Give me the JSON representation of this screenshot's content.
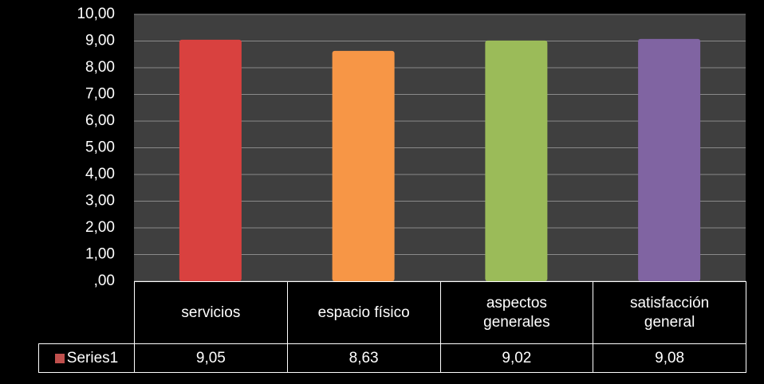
{
  "chart_data": {
    "type": "bar",
    "categories": [
      "servicios",
      "espacio físico",
      "aspectos generales",
      "satisfacción general"
    ],
    "series": [
      {
        "name": "Series1",
        "color": "#c0504d",
        "colors": [
          "#d9413f",
          "#f79646",
          "#9bbb59",
          "#8064a2"
        ],
        "values": [
          9.05,
          8.63,
          9.02,
          9.08
        ],
        "value_labels": [
          "9,05",
          "8,63",
          "9,02",
          "9,08"
        ]
      }
    ],
    "ylim": [
      0,
      10
    ],
    "yticks": [
      {
        "value": 0,
        "label": ",00"
      },
      {
        "value": 1,
        "label": "1,00"
      },
      {
        "value": 2,
        "label": "2,00"
      },
      {
        "value": 3,
        "label": "3,00"
      },
      {
        "value": 4,
        "label": "4,00"
      },
      {
        "value": 5,
        "label": "5,00"
      },
      {
        "value": 6,
        "label": "6,00"
      },
      {
        "value": 7,
        "label": "7,00"
      },
      {
        "value": 8,
        "label": "8,00"
      },
      {
        "value": 9,
        "label": "9,00"
      },
      {
        "value": 10,
        "label": "10,00"
      }
    ],
    "grid": true
  }
}
